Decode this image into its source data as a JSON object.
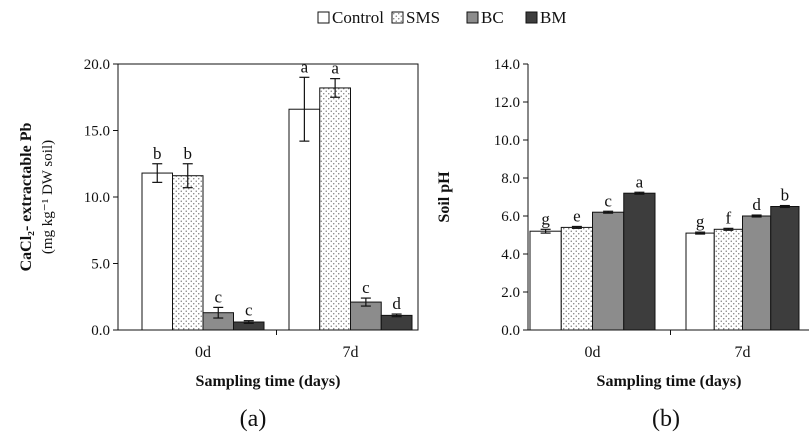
{
  "legend": [
    "Control",
    "SMS",
    "BC",
    "BM"
  ],
  "colors": {
    "Control": "#ffffff",
    "SMS": "#f2f2f2",
    "BC": "#8c8c8c",
    "BM": "#3d3d3d",
    "axis": "#111111"
  },
  "chart_data": [
    {
      "type": "bar",
      "panel_label": "(a)",
      "categories": [
        "0d",
        "7d"
      ],
      "xlabel": "Sampling time (days)",
      "ylabel_main": "CaCl₂- extractable Pb",
      "ylabel_unit": "(mg kg⁻¹ DW soil)",
      "ylim": [
        0,
        20
      ],
      "yticks": [
        "0.0",
        "5.0",
        "10.0",
        "15.0",
        "20.0"
      ],
      "series": [
        {
          "name": "Control",
          "values": [
            11.8,
            16.6
          ],
          "errors": [
            0.7,
            2.4
          ],
          "labels": [
            "b",
            "a"
          ]
        },
        {
          "name": "SMS",
          "values": [
            11.6,
            18.2
          ],
          "errors": [
            0.9,
            0.7
          ],
          "labels": [
            "b",
            "a"
          ]
        },
        {
          "name": "BC",
          "values": [
            1.3,
            2.1
          ],
          "errors": [
            0.4,
            0.3
          ],
          "labels": [
            "c",
            "c"
          ]
        },
        {
          "name": "BM",
          "values": [
            0.6,
            1.1
          ],
          "errors": [
            0.1,
            0.1
          ],
          "labels": [
            "c",
            "d"
          ]
        }
      ]
    },
    {
      "type": "bar",
      "panel_label": "(b)",
      "categories": [
        "0d",
        "7d"
      ],
      "xlabel": "Sampling time (days)",
      "ylabel_main": "Soil pH",
      "ylabel_unit": "",
      "ylim": [
        0,
        14
      ],
      "yticks": [
        "0.0",
        "2.0",
        "4.0",
        "6.0",
        "8.0",
        "10.0",
        "12.0",
        "14.0"
      ],
      "series": [
        {
          "name": "Control",
          "values": [
            5.2,
            5.1
          ],
          "errors": [
            0.1,
            0.05
          ],
          "labels": [
            "g",
            "g"
          ]
        },
        {
          "name": "SMS",
          "values": [
            5.4,
            5.3
          ],
          "errors": [
            0.05,
            0.05
          ],
          "labels": [
            "e",
            "f"
          ]
        },
        {
          "name": "BC",
          "values": [
            6.2,
            6.0
          ],
          "errors": [
            0.05,
            0.05
          ],
          "labels": [
            "c",
            "d"
          ]
        },
        {
          "name": "BM",
          "values": [
            7.2,
            6.5
          ],
          "errors": [
            0.05,
            0.05
          ],
          "labels": [
            "a",
            "b"
          ]
        }
      ]
    }
  ]
}
